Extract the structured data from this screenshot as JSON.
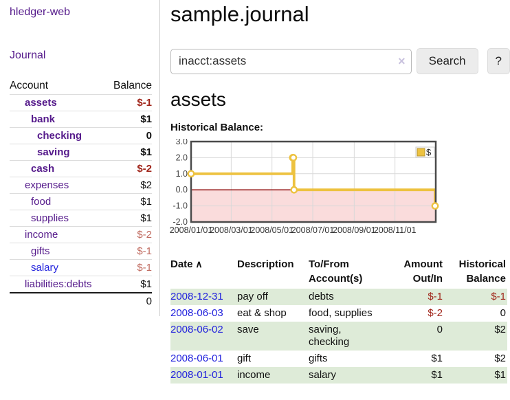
{
  "app": {
    "title": "hledger-web"
  },
  "colors": {
    "accent_purple": "#551a8b",
    "link_blue": "#2222dd",
    "negative_red": "#a0251a",
    "muted_rose": "#c06a5f",
    "row_green": "#deebd8",
    "chart_line_gold": "#edc240",
    "zero_line_dark_red": "#8b0000",
    "negative_region_pink": "#fadcdc"
  },
  "sidebar": {
    "journal_link": "Journal",
    "accounts_header": {
      "account": "Account",
      "balance": "Balance"
    },
    "accounts": [
      {
        "name": "assets",
        "depth": 1,
        "balance": "$-1",
        "bold": true,
        "name_color": "purple",
        "balance_color": "red"
      },
      {
        "name": "bank",
        "depth": 2,
        "balance": "$1",
        "bold": true,
        "name_color": "purple",
        "balance_color": "black"
      },
      {
        "name": "checking",
        "depth": 3,
        "balance": "0",
        "bold": true,
        "name_color": "purple",
        "balance_color": "black"
      },
      {
        "name": "saving",
        "depth": 3,
        "balance": "$1",
        "bold": true,
        "name_color": "purple",
        "balance_color": "black"
      },
      {
        "name": "cash",
        "depth": 2,
        "balance": "$-2",
        "bold": true,
        "name_color": "purple",
        "balance_color": "red"
      },
      {
        "name": "expenses",
        "depth": 1,
        "balance": "$2",
        "bold": false,
        "name_color": "purple",
        "balance_color": "black"
      },
      {
        "name": "food",
        "depth": 2,
        "balance": "$1",
        "bold": false,
        "name_color": "purple",
        "balance_color": "black"
      },
      {
        "name": "supplies",
        "depth": 2,
        "balance": "$1",
        "bold": false,
        "name_color": "purple",
        "balance_color": "black"
      },
      {
        "name": "income",
        "depth": 1,
        "balance": "$-2",
        "bold": false,
        "name_color": "purple",
        "balance_color": "rose"
      },
      {
        "name": "gifts",
        "depth": 2,
        "balance": "$-1",
        "bold": false,
        "name_color": "purple",
        "balance_color": "rose"
      },
      {
        "name": "salary",
        "depth": 2,
        "balance": "$-1",
        "bold": false,
        "name_color": "blue",
        "balance_color": "rose"
      },
      {
        "name": "liabilities:debts",
        "depth": 1,
        "balance": "$1",
        "bold": false,
        "name_color": "purple",
        "balance_color": "black"
      }
    ],
    "total": "0"
  },
  "header": {
    "title": "sample.journal"
  },
  "search": {
    "value": "inacct:assets",
    "clear_icon": "×",
    "search_button": "Search",
    "help_button": "?"
  },
  "account_page": {
    "title": "assets",
    "chart_label": "Historical Balance:"
  },
  "chart_data": {
    "type": "line",
    "style": "steps",
    "title": "Historical Balance:",
    "x_range": [
      "2008-01-01",
      "2009-01-01"
    ],
    "x_ticks": [
      "2008/01/01",
      "2008/03/01",
      "2008/05/01",
      "2008/07/01",
      "2008/09/01",
      "2008/11/01"
    ],
    "y_ticks": [
      3.0,
      2.0,
      1.0,
      0.0,
      -1.0,
      -2.0
    ],
    "ylim": [
      -2,
      3
    ],
    "grid": true,
    "legend": {
      "label": "$",
      "position": "top-right"
    },
    "series": [
      {
        "name": "$",
        "points": [
          {
            "date": "2008-01-01",
            "value": 1
          },
          {
            "date": "2008-06-01",
            "value": 2
          },
          {
            "date": "2008-06-02",
            "value": 2
          },
          {
            "date": "2008-06-03",
            "value": 0
          },
          {
            "date": "2008-12-31",
            "value": -1
          }
        ]
      }
    ]
  },
  "register": {
    "columns": [
      {
        "label": "Date",
        "sorted": true,
        "align": "left"
      },
      {
        "label": "Description",
        "align": "left"
      },
      {
        "label": "To/From Account(s)",
        "align": "left"
      },
      {
        "label": "Amount Out/In",
        "align": "right"
      },
      {
        "label": "Historical Balance",
        "align": "right"
      }
    ],
    "sort_icon": "∧",
    "rows": [
      {
        "date": "2008-12-31",
        "description": "pay off",
        "accounts": "debts",
        "amount": "$-1",
        "amount_color": "red",
        "balance": "$-1",
        "balance_color": "red"
      },
      {
        "date": "2008-06-03",
        "description": "eat & shop",
        "accounts": "food, supplies",
        "amount": "$-2",
        "amount_color": "red",
        "balance": "0",
        "balance_color": "black"
      },
      {
        "date": "2008-06-02",
        "description": "save",
        "accounts": "saving,\nchecking",
        "amount": "0",
        "amount_color": "black",
        "balance": "$2",
        "balance_color": "black"
      },
      {
        "date": "2008-06-01",
        "description": "gift",
        "accounts": "gifts",
        "amount": "$1",
        "amount_color": "black",
        "balance": "$2",
        "balance_color": "black"
      },
      {
        "date": "2008-01-01",
        "description": "income",
        "accounts": "salary",
        "amount": "$1",
        "amount_color": "black",
        "balance": "$1",
        "balance_color": "black"
      }
    ]
  }
}
